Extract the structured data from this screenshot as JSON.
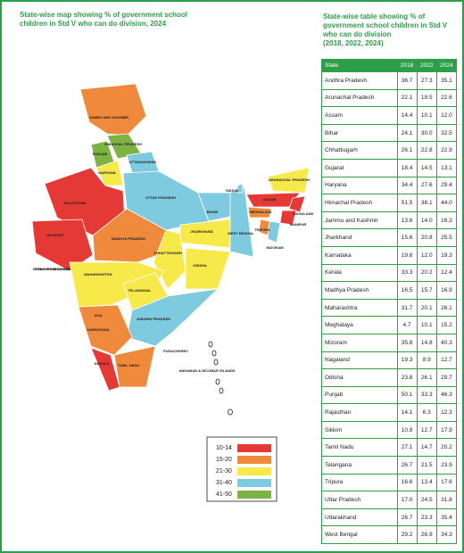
{
  "map": {
    "title": "State-wise map showing % of government school children in Std V who can do division, 2024",
    "labels": [
      "JAMMU AND KASHMIR",
      "HIMACHAL PRADESH",
      "PUNJAB",
      "UTTARAKHAND",
      "HARYANA",
      "RAJASTHAN",
      "UTTAR PRADESH",
      "SIKKIM",
      "ARUNACHAL PRADESH",
      "ASSAM",
      "NAGALAND",
      "MEGHALAYA",
      "MANIPUR",
      "BIHAR",
      "GUJARAT",
      "MADHYA PRADESH",
      "JHARKHAND",
      "WEST BENGAL",
      "TRIPURA",
      "MIZORAM",
      "CHHATTISGARH",
      "ODISHA",
      "DADRA & NAGAR HAVELI AND DAMAN & DIU",
      "MAHARASHTRA",
      "TELANGANA",
      "ANDHRA PRADESH",
      "GOA",
      "KARNATAKA",
      "PUDUCHERRY",
      "KERALA",
      "TAMIL NADU",
      "ANDAMAN & NICOBAR ISLANDS"
    ],
    "legend": [
      {
        "label": "10-14",
        "color": "#e53935"
      },
      {
        "label": "15-20",
        "color": "#ef8a3c"
      },
      {
        "label": "21-30",
        "color": "#f7e94a"
      },
      {
        "label": "31-40",
        "color": "#7ecbe0"
      },
      {
        "label": "41-50",
        "color": "#7cb342"
      }
    ]
  },
  "table": {
    "title": "State-wise table showing % of government school children in Std V who can do division",
    "subtitle": "(2018, 2022, 2024)",
    "header": [
      "State",
      "2018",
      "2022",
      "2024"
    ],
    "rows": [
      [
        "Andhra Pradesh",
        "36.7",
        "27.3",
        "35.1"
      ],
      [
        "Arunachal Pradesh",
        "22.1",
        "19.5",
        "22.6"
      ],
      [
        "Assam",
        "14.4",
        "10.1",
        "12.0"
      ],
      [
        "Bihar",
        "24.1",
        "30.0",
        "32.5"
      ],
      [
        "Chhattisgarh",
        "26.1",
        "22.8",
        "22.9"
      ],
      [
        "Gujarat",
        "18.4",
        "14.5",
        "13.1"
      ],
      [
        "Haryana",
        "34.4",
        "27.6",
        "29.4"
      ],
      [
        "Himachal Pradesh",
        "51.5",
        "38.1",
        "44.0"
      ],
      [
        "Jammu and Kashmir",
        "13.6",
        "14.0",
        "16.3"
      ],
      [
        "Jharkhand",
        "15.6",
        "20.8",
        "25.5"
      ],
      [
        "Karnataka",
        "19.6",
        "12.0",
        "19.3"
      ],
      [
        "Kerala",
        "33.3",
        "20.2",
        "12.4"
      ],
      [
        "Madhya Pradesh",
        "16.5",
        "15.7",
        "16.9"
      ],
      [
        "Maharashtra",
        "31.7",
        "20.1",
        "26.1"
      ],
      [
        "Meghalaya",
        "4.7",
        "10.1",
        "15.2"
      ],
      [
        "Mizoram",
        "35.8",
        "14.8",
        "40.3"
      ],
      [
        "Nagaland",
        "19.3",
        "8.9",
        "12.7"
      ],
      [
        "Odisha",
        "23.8",
        "26.1",
        "29.7"
      ],
      [
        "Punjab",
        "50.1",
        "33.3",
        "46.3"
      ],
      [
        "Rajasthan",
        "14.1",
        "6.3",
        "12.3"
      ],
      [
        "Sikkim",
        "10.9",
        "12.7",
        "17.9"
      ],
      [
        "Tamil Nadu",
        "27.1",
        "14.7",
        "20.2"
      ],
      [
        "Telangana",
        "26.7",
        "21.5",
        "23.9"
      ],
      [
        "Tripura",
        "16.6",
        "13.4",
        "17.6"
      ],
      [
        "Uttar Pradesh",
        "17.0",
        "24.5",
        "31.8"
      ],
      [
        "Uttarakhand",
        "26.7",
        "23.3",
        "35.4"
      ],
      [
        "West Bengal",
        "29.2",
        "26.9",
        "34.3"
      ]
    ]
  }
}
